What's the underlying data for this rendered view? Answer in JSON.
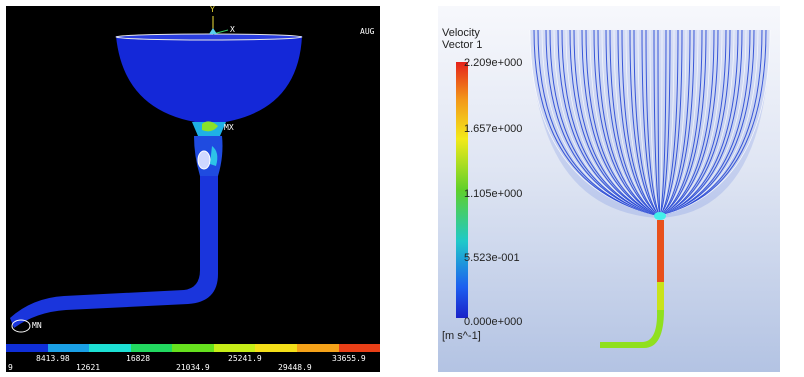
{
  "fea": {
    "axis_y": "Y",
    "axis_x": "X",
    "corner_label": "AUG",
    "max_label": "MX",
    "min_label": "MN",
    "colorbar_colors": [
      "#0f2ed7",
      "#1aa0e6",
      "#1de0d4",
      "#22d860",
      "#66e11e",
      "#c6ee18",
      "#f4df19",
      "#f5a219",
      "#e93f17"
    ],
    "ticks_top": [
      "8413.98",
      "16828",
      "25241.9",
      "33655.9"
    ],
    "ticks_bottom": [
      "9",
      "12621",
      "21034.9",
      "29448.9"
    ]
  },
  "cfd": {
    "legend_title": "Velocity",
    "legend_subtitle": "Vector 1",
    "legend_values": [
      "2.209e+000",
      "1.657e+000",
      "1.105e+000",
      "5.523e-001",
      "0.000e+000"
    ],
    "legend_unit": "[m s^-1]"
  }
}
